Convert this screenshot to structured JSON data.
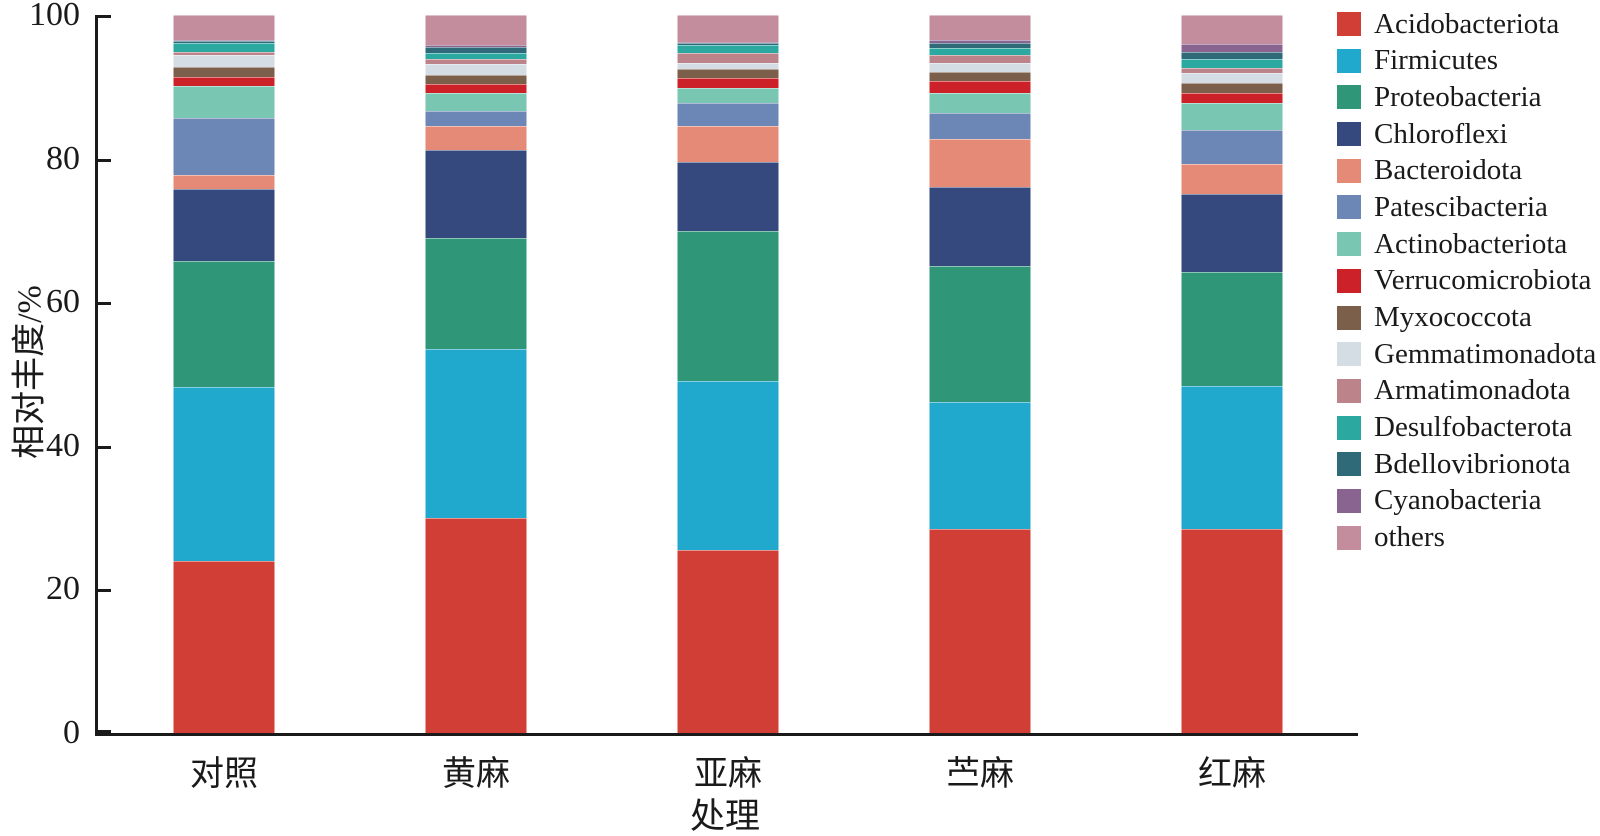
{
  "chart_data": {
    "type": "bar",
    "stacked": true,
    "orientation": "vertical",
    "xlabel": "处理",
    "ylabel": "相对丰度/%",
    "ylim": [
      0,
      100
    ],
    "yticks": [
      "0",
      "20",
      "40",
      "60",
      "80",
      "100"
    ],
    "grid": false,
    "legend_position": "right",
    "categories": [
      "对照",
      "黄麻",
      "亚麻",
      "苎麻",
      "红麻"
    ],
    "series": [
      {
        "name": "Acidobacteriota",
        "color": "#d03e36",
        "values": [
          24.0,
          30.0,
          25.5,
          28.4,
          28.4
        ]
      },
      {
        "name": "Firmicutes",
        "color": "#20a8cd",
        "values": [
          24.2,
          23.5,
          23.5,
          17.7,
          20.0
        ]
      },
      {
        "name": "Proteobacteria",
        "color": "#2f9678",
        "values": [
          17.5,
          15.4,
          20.9,
          19.0,
          15.8
        ]
      },
      {
        "name": "Chloroflexi",
        "color": "#36497e",
        "values": [
          10.1,
          12.3,
          9.6,
          11.0,
          10.9
        ]
      },
      {
        "name": "Bacteroidota",
        "color": "#e58a76",
        "values": [
          1.9,
          3.3,
          5.0,
          6.7,
          4.2
        ]
      },
      {
        "name": "Patescibacteria",
        "color": "#6c86b6",
        "values": [
          7.9,
          2.1,
          3.2,
          3.5,
          4.7
        ]
      },
      {
        "name": "Actinobacteriota",
        "color": "#79c6b2",
        "values": [
          4.5,
          2.6,
          2.1,
          2.9,
          3.7
        ]
      },
      {
        "name": "Verrucomicrobiota",
        "color": "#cc2128",
        "values": [
          1.3,
          1.2,
          1.4,
          1.6,
          1.5
        ]
      },
      {
        "name": "Myxococcota",
        "color": "#7c5f4a",
        "values": [
          1.4,
          1.3,
          1.3,
          1.3,
          1.3
        ]
      },
      {
        "name": "Gemmatimonadota",
        "color": "#d4dce4",
        "values": [
          1.6,
          1.5,
          0.8,
          1.2,
          1.4
        ]
      },
      {
        "name": "Armatimonadota",
        "color": "#bc838a",
        "values": [
          0.5,
          0.7,
          1.4,
          1.2,
          0.7
        ]
      },
      {
        "name": "Desulfobacterota",
        "color": "#2ba8a0",
        "values": [
          1.2,
          0.8,
          1.1,
          0.9,
          1.3
        ]
      },
      {
        "name": "Bdellovibrionota",
        "color": "#2e6a78",
        "values": [
          0.3,
          0.8,
          0.3,
          0.7,
          1.0
        ]
      },
      {
        "name": "Cyanobacteria",
        "color": "#8a6490",
        "values": [
          0.2,
          0.4,
          0.2,
          0.4,
          1.1
        ]
      },
      {
        "name": "others",
        "color": "#c48d9e",
        "values": [
          3.4,
          4.1,
          3.7,
          3.5,
          4.0
        ]
      }
    ]
  }
}
